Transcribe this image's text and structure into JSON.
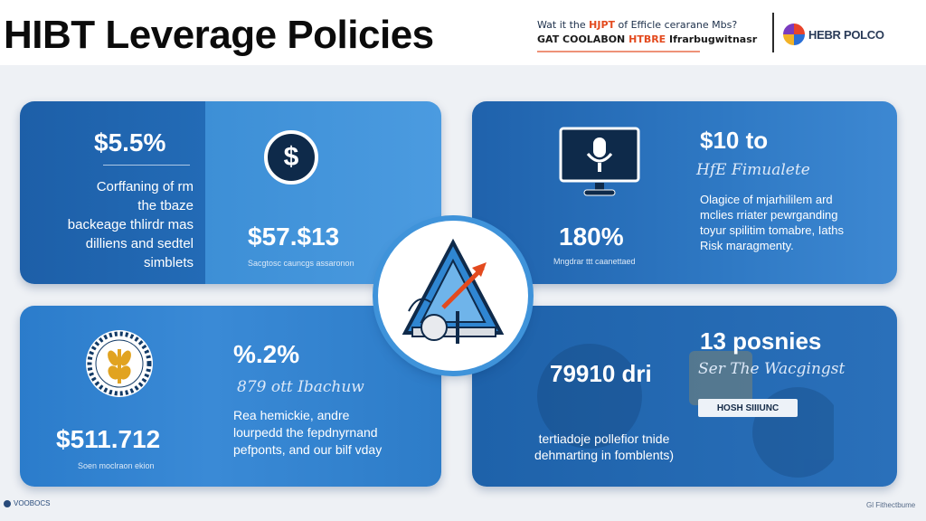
{
  "header": {
    "title": "HIBT Leverage Policies",
    "tagline_line1_a": "Wat it the ",
    "tagline_line1_hl": "HJPT",
    "tagline_line1_b": " of Efficle cerarane Mbs?",
    "tagline_line2_a": "GAT COOLABON",
    "tagline_line2_hl": "HTBRE",
    "tagline_line2_b": " Ifrarbugwitnasr",
    "brand_name": "HEBR POLCO"
  },
  "cards": {
    "top_left": {
      "headline": "$5.5%",
      "paragraph_lines": [
        "Corffaning of rm",
        "the tbaze",
        "backeage thlirdr mas",
        "dilliens and sedtel",
        "simblets"
      ],
      "stat": "$57.$13",
      "stat_caption": "Sacgtosc cauncgs assaronon"
    },
    "top_right": {
      "stat": "180%",
      "stat_caption": "Mngdrar ttt caanettaed",
      "headline": "$10 to",
      "script_text": "HfE Fimualete",
      "paragraph_lines": [
        "Olagice of mjarhililem ard",
        "mclies rriater pewrganding",
        "toyur spilitim tomabre, Iaths",
        "Risk maragmenty."
      ]
    },
    "bottom_left": {
      "value": "$511.712",
      "caption": "Soen moclraon ekion",
      "headline": "%.2%",
      "script_text": "879 ott Ibachuw",
      "paragraph_lines": [
        "Rea hemickie, andre",
        "lourpedd the fepdnyrnand",
        "pefponts, and our bilf vday"
      ]
    },
    "bottom_right": {
      "stat": "79910 dri",
      "paragraph_lines": [
        "tertiadoje pollefior tnide",
        "dehmarting in fomblents)"
      ],
      "headline": "13 posnies",
      "script_text": "Ser The Wacgingst",
      "chip_label": "HOSH SIIIUNC"
    }
  },
  "footer": {
    "left": "VOOBOCS",
    "right": "Gl Fithectbume"
  },
  "colors": {
    "card_blue_dark": "#1d5fa8",
    "card_blue_light": "#4b9be0",
    "accent_arrow": "#e34a1e",
    "hub_ring": "#3f93da"
  },
  "icons": {
    "top_left": "dollar-coin-icon",
    "top_right": "microphone-monitor-icon",
    "bottom_left": "wheat-medallion-icon",
    "center": "rising-arrow-triangle-icon"
  }
}
